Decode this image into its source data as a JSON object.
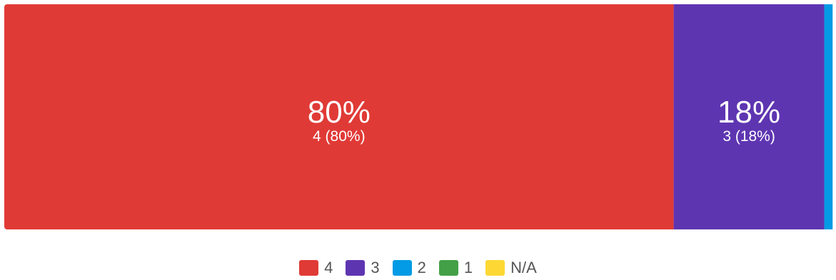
{
  "chart_data": {
    "type": "bar",
    "orientation": "horizontal-stacked-100",
    "categories": [
      "4",
      "3",
      "2",
      "1",
      "N/A"
    ],
    "series": [
      {
        "name": "4",
        "percent": 80,
        "count": 4,
        "value_label": "80%",
        "detail_label": "4 (80%)",
        "color": "#e03a36"
      },
      {
        "name": "3",
        "percent": 18,
        "count": 3,
        "value_label": "18%",
        "detail_label": "3 (18%)",
        "color": "#5e35b1"
      },
      {
        "name": "2",
        "percent": 1,
        "count": null,
        "value_label": "",
        "detail_label": "",
        "color": "#039be5"
      },
      {
        "name": "1",
        "percent": 0,
        "count": null,
        "value_label": "",
        "detail_label": "",
        "color": "#43a047"
      },
      {
        "name": "N/A",
        "percent": 0,
        "count": null,
        "value_label": "",
        "detail_label": "",
        "color": "#fdd835"
      }
    ],
    "legend_position": "bottom-center",
    "grid": false
  }
}
